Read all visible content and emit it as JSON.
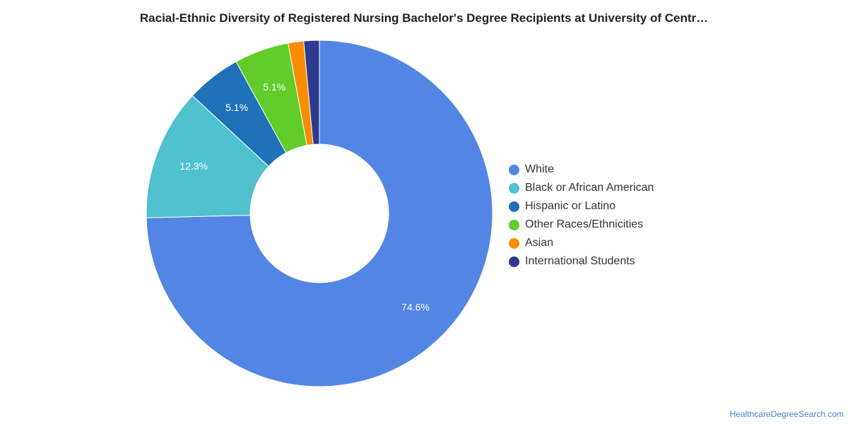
{
  "chart_data": {
    "type": "pie",
    "title": "Racial-Ethnic Diversity of Registered Nursing Bachelor's Degree Recipients at University of Centr…",
    "legend_position": "right",
    "donut": true,
    "slices": [
      {
        "name": "White",
        "value": 74.6,
        "label": "74.6%",
        "color": "#5386e4",
        "label_shown": true
      },
      {
        "name": "Black or African American",
        "value": 12.3,
        "label": "12.3%",
        "color": "#4fc1cf",
        "label_shown": true
      },
      {
        "name": "Hispanic or Latino",
        "value": 5.1,
        "label": "5.1%",
        "color": "#1f71b8",
        "label_shown": true
      },
      {
        "name": "Other Races/Ethnicities",
        "value": 5.1,
        "label": "5.1%",
        "color": "#62cc2a",
        "label_shown": true
      },
      {
        "name": "Asian",
        "value": 1.45,
        "label": "",
        "color": "#fa8c00",
        "label_shown": false
      },
      {
        "name": "International Students",
        "value": 1.45,
        "label": "",
        "color": "#2e3a8e",
        "label_shown": false
      }
    ]
  },
  "source": "HealthcareDegreeSearch.com"
}
